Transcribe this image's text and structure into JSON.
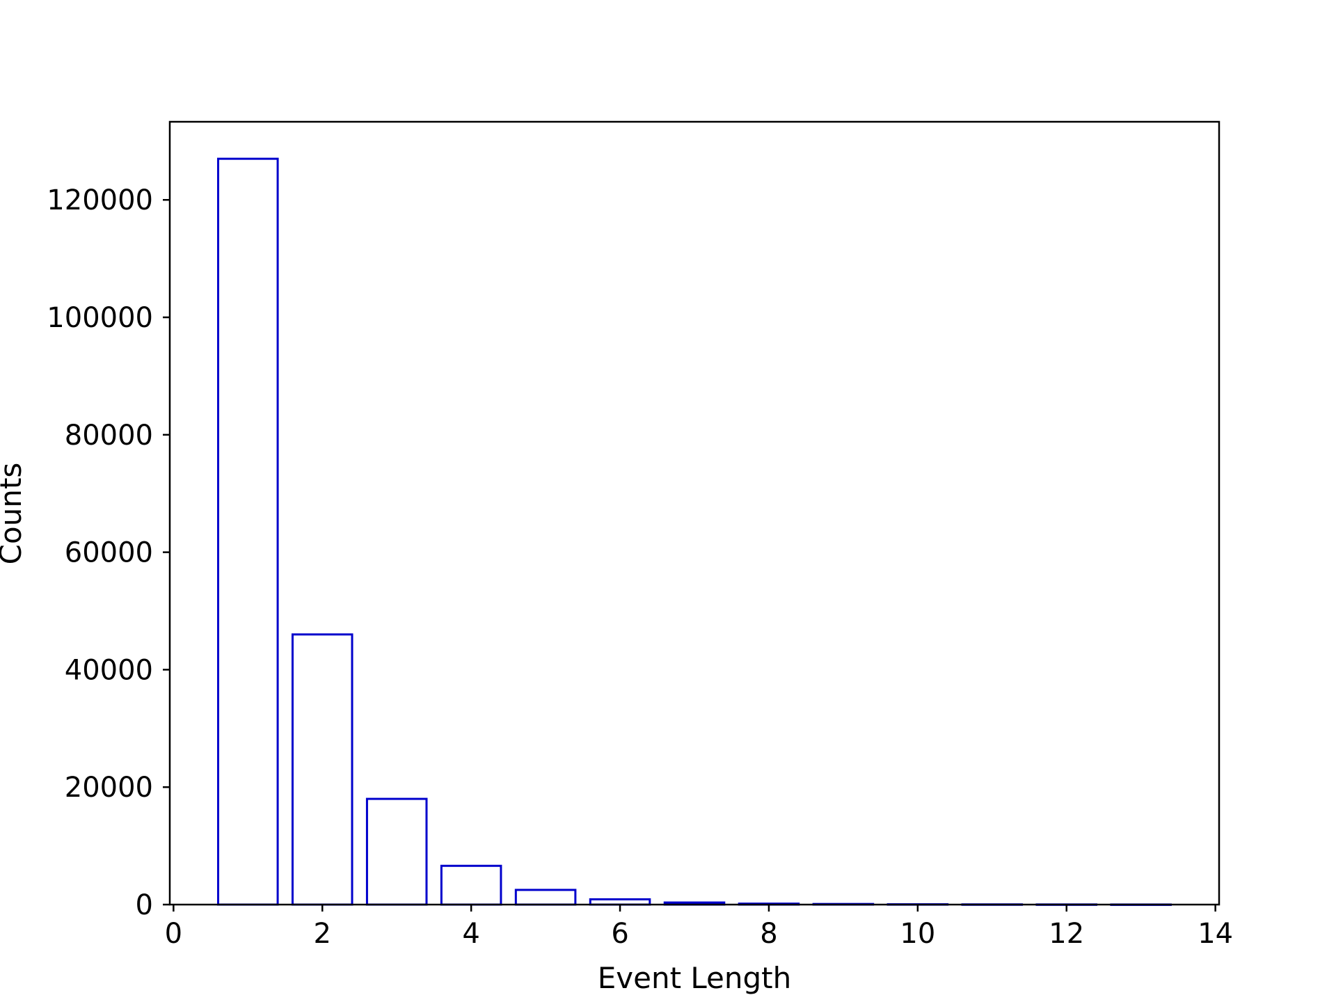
{
  "chart_data": {
    "type": "bar",
    "title": "",
    "xlabel": "Event Length",
    "ylabel": "Counts",
    "x": [
      1,
      2,
      3,
      4,
      5,
      6,
      7,
      8,
      9,
      10,
      11,
      12,
      13
    ],
    "values": [
      127000,
      46000,
      18000,
      6600,
      2500,
      900,
      350,
      160,
      100,
      50,
      30,
      20,
      10
    ],
    "bar_width": 0.8,
    "xlim": [
      -0.05,
      14.05
    ],
    "ylim": [
      0,
      133300
    ],
    "xticks": [
      0,
      2,
      4,
      6,
      8,
      10,
      12,
      14
    ],
    "xtick_labels": [
      "0",
      "2",
      "4",
      "6",
      "8",
      "10",
      "12",
      "14"
    ],
    "yticks": [
      0,
      20000,
      40000,
      60000,
      80000,
      100000,
      120000
    ],
    "ytick_labels": [
      "0",
      "20000",
      "40000",
      "60000",
      "80000",
      "100000",
      "120000"
    ],
    "grid": false,
    "colors": {
      "bar_edge": "#0000cc",
      "bar_fill": "#ffffff",
      "axes": "#000000"
    }
  }
}
